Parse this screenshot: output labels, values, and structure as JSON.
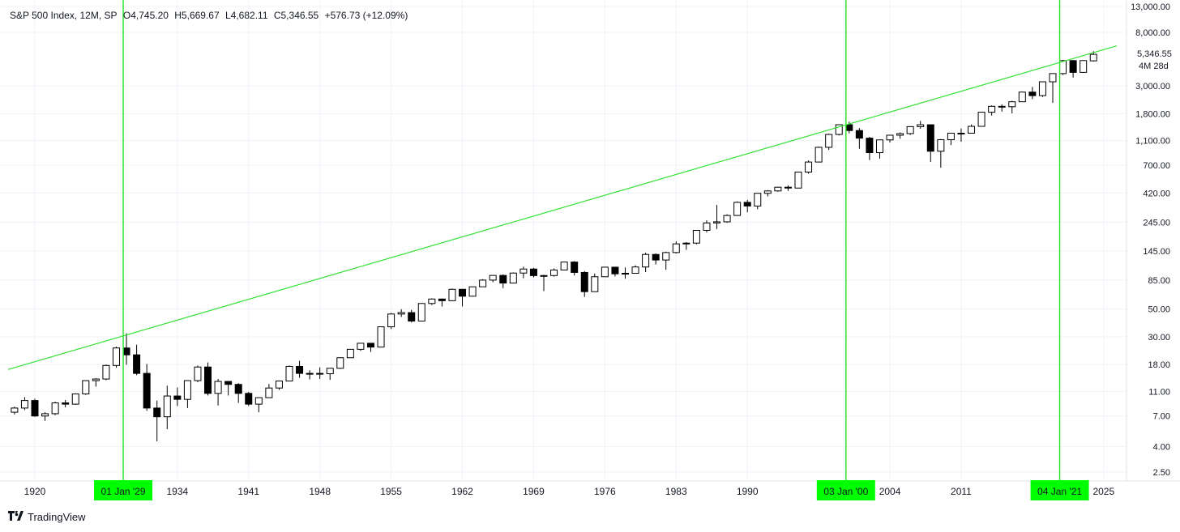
{
  "header": {
    "symbol": "S&P 500 Index, 12M, SP",
    "open": "O4,745.20",
    "high": "H5,669.67",
    "low": "L4,682.11",
    "close": "C5,346.55",
    "change": "+576.73 (+12.09%)"
  },
  "brand": {
    "logo": "‗‗",
    "name": "TradingView"
  },
  "price_label": {
    "value": "5,346.55",
    "countdown": "4M 28d"
  },
  "markers": [
    {
      "label": "01 Jan '29",
      "year": 1929
    },
    {
      "label": "03 Jan '00",
      "year": 2000
    },
    {
      "label": "04 Jan '21",
      "year": 2021
    }
  ],
  "colors": {
    "up_body": "#ffffff",
    "down_body": "#000000",
    "wick": "#000000",
    "trend_line": "#33e133",
    "marker_bg": "#00ff00",
    "grid": "#f0f3fa"
  },
  "chart_data": {
    "type": "candlestick",
    "scale": "log",
    "ylim": [
      2.0,
      13000
    ],
    "y_ticks": [
      "13,000.00",
      "8,000.00",
      "3,000.00",
      "1,800.00",
      "1,100.00",
      "700.00",
      "420.00",
      "245.00",
      "145.00",
      "85.00",
      "50.00",
      "30.00",
      "18.00",
      "11.00",
      "7.00",
      "4.00",
      "2.50"
    ],
    "y_tick_values": [
      13000,
      8000,
      3000,
      1800,
      1100,
      700,
      420,
      245,
      145,
      85,
      50,
      30,
      18,
      11,
      7,
      4,
      2.5
    ],
    "x_ticks": [
      "1920",
      "1934",
      "1941",
      "1948",
      "1955",
      "1962",
      "1969",
      "1976",
      "1983",
      "1990",
      "2004",
      "2011",
      "2025"
    ],
    "x_tick_values": [
      1920,
      1934,
      1941,
      1948,
      1955,
      1962,
      1969,
      1976,
      1983,
      1990,
      2004,
      2011,
      2025
    ],
    "trend_line": {
      "from": [
        1918,
        17
      ],
      "to": [
        2027,
        6500
      ]
    },
    "candles": [
      {
        "t": 1918,
        "o": 7.5,
        "h": 8.3,
        "l": 7.2,
        "c": 8.1
      },
      {
        "t": 1919,
        "o": 8.1,
        "h": 9.9,
        "l": 7.8,
        "c": 9.3
      },
      {
        "t": 1920,
        "o": 9.3,
        "h": 9.6,
        "l": 6.9,
        "c": 7.0
      },
      {
        "t": 1921,
        "o": 7.0,
        "h": 7.5,
        "l": 6.4,
        "c": 7.3
      },
      {
        "t": 1922,
        "o": 7.3,
        "h": 9.1,
        "l": 7.1,
        "c": 8.9
      },
      {
        "t": 1923,
        "o": 8.9,
        "h": 9.4,
        "l": 8.2,
        "c": 8.7
      },
      {
        "t": 1924,
        "o": 8.7,
        "h": 10.6,
        "l": 8.6,
        "c": 10.5
      },
      {
        "t": 1925,
        "o": 10.5,
        "h": 13.5,
        "l": 10.3,
        "c": 13.4
      },
      {
        "t": 1926,
        "o": 13.4,
        "h": 14.0,
        "l": 12.0,
        "c": 13.8
      },
      {
        "t": 1927,
        "o": 13.8,
        "h": 18.0,
        "l": 13.5,
        "c": 17.7
      },
      {
        "t": 1928,
        "o": 17.7,
        "h": 25.0,
        "l": 17.0,
        "c": 24.4
      },
      {
        "t": 1929,
        "o": 24.4,
        "h": 31.9,
        "l": 17.9,
        "c": 21.5
      },
      {
        "t": 1930,
        "o": 21.5,
        "h": 25.9,
        "l": 14.8,
        "c": 15.3
      },
      {
        "t": 1931,
        "o": 15.3,
        "h": 18.2,
        "l": 7.7,
        "c": 8.1
      },
      {
        "t": 1932,
        "o": 8.1,
        "h": 9.3,
        "l": 4.4,
        "c": 6.9
      },
      {
        "t": 1933,
        "o": 6.9,
        "h": 12.2,
        "l": 5.5,
        "c": 10.1
      },
      {
        "t": 1934,
        "o": 10.1,
        "h": 11.8,
        "l": 8.4,
        "c": 9.5
      },
      {
        "t": 1935,
        "o": 9.5,
        "h": 13.5,
        "l": 8.1,
        "c": 13.4
      },
      {
        "t": 1936,
        "o": 13.4,
        "h": 17.7,
        "l": 13.0,
        "c": 17.2
      },
      {
        "t": 1937,
        "o": 17.2,
        "h": 18.7,
        "l": 10.2,
        "c": 10.6
      },
      {
        "t": 1938,
        "o": 10.6,
        "h": 13.8,
        "l": 8.5,
        "c": 13.2
      },
      {
        "t": 1939,
        "o": 13.2,
        "h": 13.2,
        "l": 10.2,
        "c": 12.5
      },
      {
        "t": 1940,
        "o": 12.5,
        "h": 12.8,
        "l": 8.9,
        "c": 10.6
      },
      {
        "t": 1941,
        "o": 10.6,
        "h": 10.9,
        "l": 8.4,
        "c": 8.7
      },
      {
        "t": 1942,
        "o": 8.7,
        "h": 9.8,
        "l": 7.5,
        "c": 9.8
      },
      {
        "t": 1943,
        "o": 9.8,
        "h": 12.6,
        "l": 9.8,
        "c": 11.7
      },
      {
        "t": 1944,
        "o": 11.7,
        "h": 13.3,
        "l": 11.3,
        "c": 13.3
      },
      {
        "t": 1945,
        "o": 13.3,
        "h": 17.7,
        "l": 13.2,
        "c": 17.4
      },
      {
        "t": 1946,
        "o": 17.4,
        "h": 19.3,
        "l": 14.1,
        "c": 15.3
      },
      {
        "t": 1947,
        "o": 15.3,
        "h": 16.2,
        "l": 13.7,
        "c": 15.3
      },
      {
        "t": 1948,
        "o": 15.3,
        "h": 17.1,
        "l": 13.8,
        "c": 15.2
      },
      {
        "t": 1949,
        "o": 15.2,
        "h": 16.8,
        "l": 13.6,
        "c": 16.8
      },
      {
        "t": 1950,
        "o": 16.8,
        "h": 20.4,
        "l": 16.6,
        "c": 20.4
      },
      {
        "t": 1951,
        "o": 20.4,
        "h": 23.9,
        "l": 20.7,
        "c": 23.8
      },
      {
        "t": 1952,
        "o": 23.8,
        "h": 26.6,
        "l": 23.1,
        "c": 26.6
      },
      {
        "t": 1953,
        "o": 26.6,
        "h": 26.7,
        "l": 22.7,
        "c": 24.8
      },
      {
        "t": 1954,
        "o": 24.8,
        "h": 36.0,
        "l": 24.8,
        "c": 35.98
      },
      {
        "t": 1955,
        "o": 35.98,
        "h": 46.4,
        "l": 34.6,
        "c": 45.5
      },
      {
        "t": 1956,
        "o": 45.5,
        "h": 49.7,
        "l": 43.1,
        "c": 46.7
      },
      {
        "t": 1957,
        "o": 46.7,
        "h": 49.1,
        "l": 38.98,
        "c": 39.99
      },
      {
        "t": 1958,
        "o": 39.99,
        "h": 55.2,
        "l": 40.3,
        "c": 55.2
      },
      {
        "t": 1959,
        "o": 55.2,
        "h": 60.7,
        "l": 53.6,
        "c": 59.9
      },
      {
        "t": 1960,
        "o": 59.9,
        "h": 60.4,
        "l": 52.2,
        "c": 58.1
      },
      {
        "t": 1961,
        "o": 58.1,
        "h": 72.6,
        "l": 57.6,
        "c": 71.6
      },
      {
        "t": 1962,
        "o": 71.6,
        "h": 71.1,
        "l": 52.3,
        "c": 63.1
      },
      {
        "t": 1963,
        "o": 63.1,
        "h": 75.0,
        "l": 62.7,
        "c": 75.0
      },
      {
        "t": 1964,
        "o": 75.0,
        "h": 86.3,
        "l": 75.4,
        "c": 84.8
      },
      {
        "t": 1965,
        "o": 84.8,
        "h": 92.6,
        "l": 81.6,
        "c": 92.4
      },
      {
        "t": 1966,
        "o": 92.4,
        "h": 94.1,
        "l": 73.2,
        "c": 80.3
      },
      {
        "t": 1967,
        "o": 80.3,
        "h": 97.6,
        "l": 80.4,
        "c": 96.5
      },
      {
        "t": 1968,
        "o": 96.5,
        "h": 108.4,
        "l": 87.7,
        "c": 103.9
      },
      {
        "t": 1969,
        "o": 103.9,
        "h": 106.2,
        "l": 89.2,
        "c": 92.1
      },
      {
        "t": 1970,
        "o": 92.1,
        "h": 93.5,
        "l": 69.3,
        "c": 92.2
      },
      {
        "t": 1971,
        "o": 92.2,
        "h": 104.8,
        "l": 90.2,
        "c": 102.1
      },
      {
        "t": 1972,
        "o": 102.1,
        "h": 119.1,
        "l": 101.7,
        "c": 118.1
      },
      {
        "t": 1973,
        "o": 118.1,
        "h": 120.2,
        "l": 92.2,
        "c": 97.6
      },
      {
        "t": 1974,
        "o": 97.6,
        "h": 99.8,
        "l": 62.3,
        "c": 68.6
      },
      {
        "t": 1975,
        "o": 68.6,
        "h": 95.6,
        "l": 70.0,
        "c": 90.2
      },
      {
        "t": 1976,
        "o": 90.2,
        "h": 107.8,
        "l": 90.9,
        "c": 107.5
      },
      {
        "t": 1977,
        "o": 107.5,
        "h": 107.0,
        "l": 90.7,
        "c": 95.1
      },
      {
        "t": 1978,
        "o": 95.1,
        "h": 106.99,
        "l": 86.9,
        "c": 96.1
      },
      {
        "t": 1979,
        "o": 96.1,
        "h": 111.3,
        "l": 96.1,
        "c": 107.9
      },
      {
        "t": 1980,
        "o": 107.9,
        "h": 140.5,
        "l": 98.2,
        "c": 135.8
      },
      {
        "t": 1981,
        "o": 135.8,
        "h": 138.1,
        "l": 112.8,
        "c": 122.6
      },
      {
        "t": 1982,
        "o": 122.6,
        "h": 143.0,
        "l": 102.4,
        "c": 140.6
      },
      {
        "t": 1983,
        "o": 140.6,
        "h": 172.7,
        "l": 138.3,
        "c": 164.9
      },
      {
        "t": 1984,
        "o": 164.9,
        "h": 170.4,
        "l": 147.8,
        "c": 167.2
      },
      {
        "t": 1985,
        "o": 167.2,
        "h": 212.0,
        "l": 163.4,
        "c": 211.3
      },
      {
        "t": 1986,
        "o": 211.3,
        "h": 254.0,
        "l": 203.5,
        "c": 242.2
      },
      {
        "t": 1987,
        "o": 242.2,
        "h": 336.8,
        "l": 216.5,
        "c": 247.1
      },
      {
        "t": 1988,
        "o": 247.1,
        "h": 283.7,
        "l": 242.6,
        "c": 277.7
      },
      {
        "t": 1989,
        "o": 277.7,
        "h": 359.8,
        "l": 275.3,
        "c": 353.4
      },
      {
        "t": 1990,
        "o": 353.4,
        "h": 369.8,
        "l": 294.5,
        "c": 330.2
      },
      {
        "t": 1991,
        "o": 330.2,
        "h": 417.1,
        "l": 311.5,
        "c": 417.1
      },
      {
        "t": 1992,
        "o": 417.1,
        "h": 441.3,
        "l": 394.5,
        "c": 435.7
      },
      {
        "t": 1993,
        "o": 435.7,
        "h": 470.9,
        "l": 429.1,
        "c": 466.5
      },
      {
        "t": 1994,
        "o": 466.5,
        "h": 482.9,
        "l": 435.9,
        "c": 459.3
      },
      {
        "t": 1995,
        "o": 459.3,
        "h": 621.7,
        "l": 459.1,
        "c": 615.9
      },
      {
        "t": 1996,
        "o": 615.9,
        "h": 762.1,
        "l": 597.3,
        "c": 740.7
      },
      {
        "t": 1997,
        "o": 740.7,
        "h": 983.8,
        "l": 737.0,
        "c": 970.4
      },
      {
        "t": 1998,
        "o": 970.4,
        "h": 1244.9,
        "l": 923.3,
        "c": 1229.2
      },
      {
        "t": 1999,
        "o": 1229.2,
        "h": 1469.3,
        "l": 1205.5,
        "c": 1469.3
      },
      {
        "t": 2000,
        "o": 1469.3,
        "h": 1552.9,
        "l": 1254.1,
        "c": 1320.3
      },
      {
        "t": 2001,
        "o": 1320.3,
        "h": 1383.4,
        "l": 944.8,
        "c": 1148.1
      },
      {
        "t": 2002,
        "o": 1148.1,
        "h": 1176.9,
        "l": 768.6,
        "c": 879.8
      },
      {
        "t": 2003,
        "o": 879.8,
        "h": 1112.6,
        "l": 788.9,
        "c": 1111.9
      },
      {
        "t": 2004,
        "o": 1111.9,
        "h": 1217.3,
        "l": 1060.7,
        "c": 1211.9
      },
      {
        "t": 2005,
        "o": 1211.9,
        "h": 1275.8,
        "l": 1136.2,
        "c": 1248.3
      },
      {
        "t": 2006,
        "o": 1248.3,
        "h": 1431.8,
        "l": 1219.3,
        "c": 1418.3
      },
      {
        "t": 2007,
        "o": 1418.3,
        "h": 1576.1,
        "l": 1363.98,
        "c": 1468.4
      },
      {
        "t": 2008,
        "o": 1468.4,
        "h": 1471.8,
        "l": 741.0,
        "c": 903.3
      },
      {
        "t": 2009,
        "o": 903.3,
        "h": 1130.4,
        "l": 666.8,
        "c": 1115.1
      },
      {
        "t": 2010,
        "o": 1115.1,
        "h": 1262.6,
        "l": 1010.9,
        "c": 1257.6
      },
      {
        "t": 2011,
        "o": 1257.6,
        "h": 1370.6,
        "l": 1074.8,
        "c": 1257.6
      },
      {
        "t": 2012,
        "o": 1257.6,
        "h": 1474.5,
        "l": 1258.9,
        "c": 1426.2
      },
      {
        "t": 2013,
        "o": 1426.2,
        "h": 1849.4,
        "l": 1426.2,
        "c": 1848.4
      },
      {
        "t": 2014,
        "o": 1848.4,
        "h": 2093.6,
        "l": 1737.9,
        "c": 2058.9
      },
      {
        "t": 2015,
        "o": 2058.9,
        "h": 2134.7,
        "l": 1867.0,
        "c": 2043.9
      },
      {
        "t": 2016,
        "o": 2043.9,
        "h": 2277.5,
        "l": 1810.1,
        "c": 2238.8
      },
      {
        "t": 2017,
        "o": 2238.8,
        "h": 2694.97,
        "l": 2245.1,
        "c": 2673.6
      },
      {
        "t": 2018,
        "o": 2673.6,
        "h": 2940.9,
        "l": 2346.6,
        "c": 2506.9
      },
      {
        "t": 2019,
        "o": 2506.9,
        "h": 3247.9,
        "l": 2443.96,
        "c": 3230.8
      },
      {
        "t": 2020,
        "o": 3230.8,
        "h": 3760.2,
        "l": 2191.9,
        "c": 3756.1
      },
      {
        "t": 2021,
        "o": 3756.1,
        "h": 4818.6,
        "l": 3662.7,
        "c": 4766.2
      },
      {
        "t": 2022,
        "o": 4766.2,
        "h": 4818.6,
        "l": 3491.6,
        "c": 3839.5
      },
      {
        "t": 2023,
        "o": 3839.5,
        "h": 4793.3,
        "l": 3808.9,
        "c": 4769.8
      },
      {
        "t": 2024,
        "o": 4745.2,
        "h": 5669.67,
        "l": 4682.11,
        "c": 5346.55
      }
    ]
  }
}
